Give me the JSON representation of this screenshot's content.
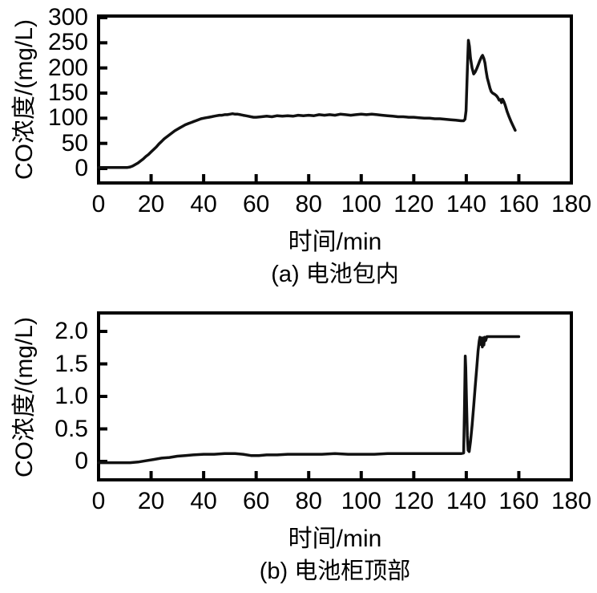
{
  "figure": {
    "background": "#ffffff",
    "line_color": "#111111",
    "axis_color": "#000000"
  },
  "chart_data": [
    {
      "id": "a",
      "type": "line",
      "caption": "(a) 电池包内",
      "xlabel": "时间/min",
      "ylabel": "CO浓度/(mg/L)",
      "xlim": [
        0,
        180
      ],
      "ylim": [
        -29,
        303
      ],
      "grid": false,
      "legend": "none",
      "xticks": [
        {
          "v": 0,
          "label": "0"
        },
        {
          "v": 20,
          "label": "20"
        },
        {
          "v": 40,
          "label": "40"
        },
        {
          "v": 60,
          "label": "60"
        },
        {
          "v": 80,
          "label": "80"
        },
        {
          "v": 100,
          "label": "100"
        },
        {
          "v": 120,
          "label": "120"
        },
        {
          "v": 140,
          "label": "140"
        },
        {
          "v": 160,
          "label": "160"
        },
        {
          "v": 180,
          "label": "180"
        }
      ],
      "yticks": [
        {
          "v": 0,
          "label": "0"
        },
        {
          "v": 50,
          "label": "50"
        },
        {
          "v": 100,
          "label": "100"
        },
        {
          "v": 150,
          "label": "150"
        },
        {
          "v": 200,
          "label": "200"
        },
        {
          "v": 250,
          "label": "250"
        },
        {
          "v": 300,
          "label": "300"
        }
      ],
      "series": [
        [
          0,
          2
        ],
        [
          3,
          2
        ],
        [
          6,
          2
        ],
        [
          9,
          2
        ],
        [
          11,
          2
        ],
        [
          12,
          3
        ],
        [
          13,
          5
        ],
        [
          14,
          8
        ],
        [
          15,
          11
        ],
        [
          16,
          15
        ],
        [
          17,
          19
        ],
        [
          18,
          24
        ],
        [
          19,
          28
        ],
        [
          20,
          33
        ],
        [
          21,
          38
        ],
        [
          22,
          43
        ],
        [
          23,
          49
        ],
        [
          24,
          54
        ],
        [
          25,
          59
        ],
        [
          26,
          63
        ],
        [
          27,
          67
        ],
        [
          28,
          71
        ],
        [
          29,
          75
        ],
        [
          30,
          78
        ],
        [
          31,
          81
        ],
        [
          32,
          84
        ],
        [
          33,
          87
        ],
        [
          34,
          89
        ],
        [
          35,
          91
        ],
        [
          36,
          93
        ],
        [
          37,
          95
        ],
        [
          38,
          97
        ],
        [
          39,
          99
        ],
        [
          40,
          100
        ],
        [
          41,
          101
        ],
        [
          42,
          102
        ],
        [
          43,
          103
        ],
        [
          44,
          104
        ],
        [
          45,
          105
        ],
        [
          46,
          106
        ],
        [
          47,
          106
        ],
        [
          48,
          107
        ],
        [
          49,
          107
        ],
        [
          50,
          108
        ],
        [
          51,
          109
        ],
        [
          52,
          108
        ],
        [
          53,
          108
        ],
        [
          54,
          107
        ],
        [
          55,
          106
        ],
        [
          56,
          105
        ],
        [
          57,
          104
        ],
        [
          58,
          103
        ],
        [
          59,
          102
        ],
        [
          60,
          102
        ],
        [
          62,
          103
        ],
        [
          64,
          104
        ],
        [
          66,
          103
        ],
        [
          68,
          105
        ],
        [
          70,
          104
        ],
        [
          72,
          105
        ],
        [
          74,
          104
        ],
        [
          76,
          106
        ],
        [
          78,
          105
        ],
        [
          80,
          106
        ],
        [
          82,
          105
        ],
        [
          84,
          107
        ],
        [
          86,
          106
        ],
        [
          88,
          107
        ],
        [
          90,
          106
        ],
        [
          92,
          108
        ],
        [
          94,
          107
        ],
        [
          96,
          106
        ],
        [
          98,
          107
        ],
        [
          100,
          108
        ],
        [
          102,
          107
        ],
        [
          104,
          108
        ],
        [
          106,
          107
        ],
        [
          108,
          106
        ],
        [
          110,
          105
        ],
        [
          112,
          104
        ],
        [
          114,
          103
        ],
        [
          116,
          103
        ],
        [
          118,
          102
        ],
        [
          120,
          102
        ],
        [
          122,
          101
        ],
        [
          124,
          100
        ],
        [
          126,
          100
        ],
        [
          128,
          99
        ],
        [
          130,
          99
        ],
        [
          132,
          98
        ],
        [
          134,
          97
        ],
        [
          136,
          96
        ],
        [
          138,
          95
        ],
        [
          139,
          95
        ],
        [
          139.5,
          98
        ],
        [
          139.9,
          115
        ],
        [
          140.2,
          160
        ],
        [
          140.5,
          210
        ],
        [
          140.8,
          255
        ],
        [
          141.2,
          243
        ],
        [
          141.6,
          220
        ],
        [
          142.2,
          200
        ],
        [
          142.8,
          188
        ],
        [
          143.4,
          192
        ],
        [
          144,
          199
        ],
        [
          144.6,
          207
        ],
        [
          145.2,
          215
        ],
        [
          145.8,
          222
        ],
        [
          146.2,
          225
        ],
        [
          146.7,
          219
        ],
        [
          147.1,
          210
        ],
        [
          147.5,
          195
        ],
        [
          148,
          180
        ],
        [
          148.5,
          170
        ],
        [
          149,
          160
        ],
        [
          149.5,
          153
        ],
        [
          150,
          150
        ],
        [
          150.7,
          148
        ],
        [
          151.4,
          145
        ],
        [
          152,
          141
        ],
        [
          152.5,
          136
        ],
        [
          153,
          137
        ],
        [
          153.4,
          131
        ],
        [
          153.8,
          138
        ],
        [
          154.3,
          133
        ],
        [
          154.8,
          126
        ],
        [
          155.5,
          114
        ],
        [
          156.2,
          104
        ],
        [
          157,
          94
        ],
        [
          157.8,
          85
        ],
        [
          158.6,
          76
        ]
      ]
    },
    {
      "id": "b",
      "type": "line",
      "caption": "(b) 电池柜顶部",
      "xlabel": "时间/min",
      "ylabel": "CO浓度/(mg/L)",
      "xlim": [
        0,
        180
      ],
      "ylim": [
        -0.28,
        2.28
      ],
      "grid": false,
      "legend": "none",
      "xticks": [
        {
          "v": 0,
          "label": "0"
        },
        {
          "v": 20,
          "label": "20"
        },
        {
          "v": 40,
          "label": "40"
        },
        {
          "v": 60,
          "label": "60"
        },
        {
          "v": 80,
          "label": "80"
        },
        {
          "v": 100,
          "label": "100"
        },
        {
          "v": 120,
          "label": "120"
        },
        {
          "v": 140,
          "label": "140"
        },
        {
          "v": 160,
          "label": "160"
        },
        {
          "v": 180,
          "label": "180"
        }
      ],
      "yticks": [
        {
          "v": 0,
          "label": "0"
        },
        {
          "v": 0.5,
          "label": "0.5"
        },
        {
          "v": 1.0,
          "label": "1.0"
        },
        {
          "v": 1.5,
          "label": "1.5"
        },
        {
          "v": 2.0,
          "label": "2.0"
        }
      ],
      "series": [
        [
          0,
          -0.02
        ],
        [
          4,
          -0.02
        ],
        [
          8,
          -0.02
        ],
        [
          12,
          -0.02
        ],
        [
          15,
          -0.01
        ],
        [
          18,
          0.01
        ],
        [
          21,
          0.03
        ],
        [
          24,
          0.05
        ],
        [
          27,
          0.06
        ],
        [
          30,
          0.08
        ],
        [
          33,
          0.09
        ],
        [
          36,
          0.1
        ],
        [
          40,
          0.11
        ],
        [
          44,
          0.11
        ],
        [
          48,
          0.12
        ],
        [
          52,
          0.12
        ],
        [
          55,
          0.11
        ],
        [
          58,
          0.09
        ],
        [
          61,
          0.09
        ],
        [
          64,
          0.1
        ],
        [
          68,
          0.1
        ],
        [
          72,
          0.11
        ],
        [
          76,
          0.11
        ],
        [
          80,
          0.11
        ],
        [
          85,
          0.11
        ],
        [
          90,
          0.12
        ],
        [
          95,
          0.11
        ],
        [
          100,
          0.11
        ],
        [
          105,
          0.11
        ],
        [
          110,
          0.12
        ],
        [
          115,
          0.12
        ],
        [
          120,
          0.12
        ],
        [
          125,
          0.12
        ],
        [
          130,
          0.12
        ],
        [
          134,
          0.12
        ],
        [
          138,
          0.12
        ],
        [
          139,
          0.13
        ],
        [
          139.3,
          0.8
        ],
        [
          139.6,
          1.62
        ],
        [
          139.8,
          1.45
        ],
        [
          140.1,
          0.9
        ],
        [
          140.4,
          0.4
        ],
        [
          140.7,
          0.17
        ],
        [
          141.1,
          0.15
        ],
        [
          141.6,
          0.3
        ],
        [
          142.2,
          0.55
        ],
        [
          142.8,
          0.85
        ],
        [
          143.4,
          1.15
        ],
        [
          144,
          1.45
        ],
        [
          144.5,
          1.7
        ],
        [
          144.9,
          1.85
        ],
        [
          145.2,
          1.91
        ],
        [
          145.5,
          1.8
        ],
        [
          145.8,
          1.9
        ],
        [
          146.1,
          1.76
        ],
        [
          146.4,
          1.9
        ],
        [
          146.7,
          1.79
        ],
        [
          147,
          1.91
        ],
        [
          147.4,
          1.86
        ],
        [
          147.8,
          1.92
        ],
        [
          148.5,
          1.92
        ],
        [
          152,
          1.92
        ],
        [
          156,
          1.92
        ],
        [
          160,
          1.92
        ]
      ]
    }
  ]
}
